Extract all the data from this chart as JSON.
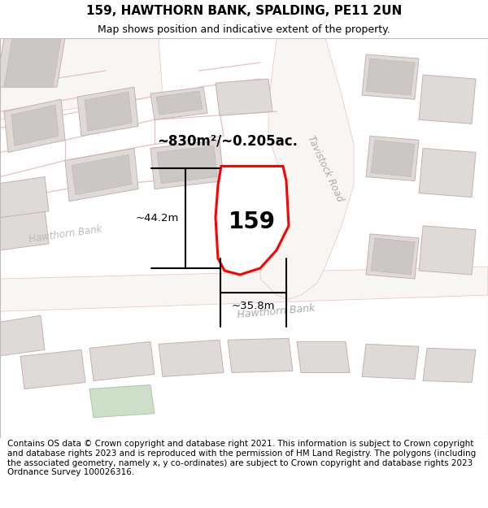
{
  "title": "159, HAWTHORN BANK, SPALDING, PE11 2UN",
  "subtitle": "Map shows position and indicative extent of the property.",
  "footer": "Contains OS data © Crown copyright and database right 2021. This information is subject to Crown copyright and database rights 2023 and is reproduced with the permission of HM Land Registry. The polygons (including the associated geometry, namely x, y co-ordinates) are subject to Crown copyright and database rights 2023 Ordnance Survey 100026316.",
  "area_text": "~830m²/~0.205ac.",
  "property_label": "159",
  "dim_width": "~35.8m",
  "dim_height": "~44.2m",
  "road_label_tavistock": "Tavistock Road",
  "road_label_hawthorn": "Hawthorn Bank",
  "title_fontsize": 11,
  "subtitle_fontsize": 9,
  "footer_fontsize": 7.5
}
